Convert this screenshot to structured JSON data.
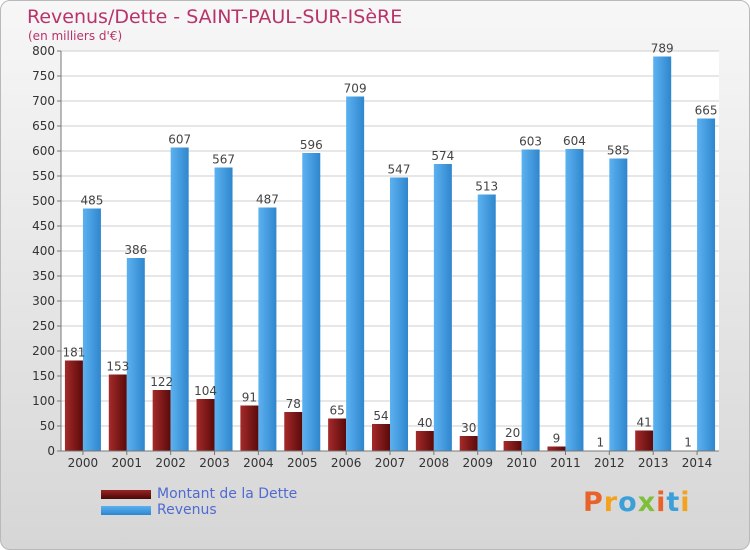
{
  "chart_data": {
    "type": "bar",
    "title": "Revenus/Dette - SAINT-PAUL-SUR-ISèRE",
    "subtitle": "(en milliers d'€)",
    "xlabel": "",
    "ylabel": "",
    "categories": [
      "2000",
      "2001",
      "2002",
      "2003",
      "2004",
      "2005",
      "2006",
      "2007",
      "2008",
      "2009",
      "2010",
      "2011",
      "2012",
      "2013",
      "2014"
    ],
    "series": [
      {
        "name": "Montant de la Dette",
        "color": "#7a1313",
        "values": [
          181,
          153,
          122,
          104,
          91,
          78,
          65,
          54,
          40,
          30,
          20,
          9,
          1,
          41,
          1
        ]
      },
      {
        "name": "Revenus",
        "color": "#3d98e0",
        "values": [
          485,
          386,
          607,
          567,
          487,
          596,
          709,
          547,
          574,
          513,
          603,
          604,
          585,
          789,
          665
        ]
      }
    ],
    "ylim": [
      0,
      800
    ],
    "yticks": [
      0,
      50,
      100,
      150,
      200,
      250,
      300,
      350,
      400,
      450,
      500,
      550,
      600,
      650,
      700,
      750,
      800
    ],
    "grid": true,
    "legend_position": "bottom-left"
  },
  "logo": {
    "text": "Proxiti",
    "colors": [
      "#e8632b",
      "#f2a31b",
      "#3ba0d9",
      "#7fbf3a",
      "#e8632b",
      "#3ba0d9",
      "#f2a31b"
    ]
  }
}
